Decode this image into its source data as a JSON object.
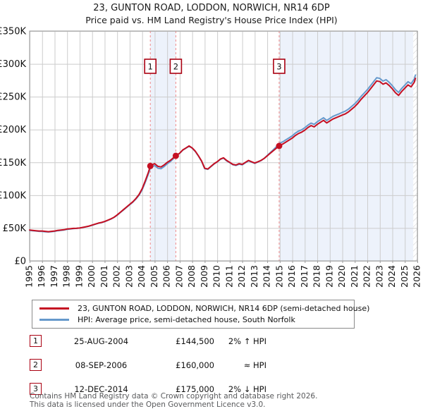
{
  "title": {
    "line1": "23, GUNTON ROAD, LODDON, NORWICH, NR14 6DP",
    "line2": "Price paid vs. HM Land Registry's House Price Index (HPI)"
  },
  "colors": {
    "price_line": "#c50f22",
    "hpi_line": "#6699cc",
    "sale_dashed": "#f08a8a",
    "marker_box_border": "#aa0011",
    "band_fill": "#edf2fb",
    "gridline": "#cccccc",
    "plot_border": "#9a9a9a",
    "hatch": "#c8c8c8"
  },
  "chart_data": {
    "type": "line",
    "title": "Price paid vs. HM Land Registry's House Price Index (HPI)",
    "units": "GBP thousands",
    "xlim": [
      1995,
      2026
    ],
    "ylim": [
      0,
      350
    ],
    "x_ticks": [
      1995,
      1996,
      1997,
      1998,
      1999,
      2000,
      2001,
      2002,
      2003,
      2004,
      2005,
      2006,
      2007,
      2008,
      2009,
      2010,
      2011,
      2012,
      2013,
      2014,
      2015,
      2016,
      2017,
      2018,
      2019,
      2020,
      2021,
      2022,
      2023,
      2024,
      2025,
      2026
    ],
    "y_ticks": [
      {
        "v": 0,
        "label": "£0"
      },
      {
        "v": 50,
        "label": "£50K"
      },
      {
        "v": 100,
        "label": "£100K"
      },
      {
        "v": 150,
        "label": "£150K"
      },
      {
        "v": 200,
        "label": "£200K"
      },
      {
        "v": 250,
        "label": "£250K"
      },
      {
        "v": 300,
        "label": "£300K"
      },
      {
        "v": 350,
        "label": "£350K"
      }
    ],
    "x": [
      1995,
      1995.25,
      1995.5,
      1995.75,
      1996,
      1996.25,
      1996.5,
      1996.75,
      1997,
      1997.25,
      1997.5,
      1997.75,
      1998,
      1998.25,
      1998.5,
      1998.75,
      1999,
      1999.25,
      1999.5,
      1999.75,
      2000,
      2000.25,
      2000.5,
      2000.75,
      2001,
      2001.25,
      2001.5,
      2001.75,
      2002,
      2002.25,
      2002.5,
      2002.75,
      2003,
      2003.25,
      2003.5,
      2003.75,
      2004,
      2004.25,
      2004.5,
      2004.65,
      2004.75,
      2005,
      2005.25,
      2005.5,
      2005.75,
      2006,
      2006.25,
      2006.5,
      2006.69,
      2007,
      2007.25,
      2007.5,
      2007.75,
      2008,
      2008.25,
      2008.5,
      2008.75,
      2009,
      2009.25,
      2009.5,
      2009.75,
      2010,
      2010.25,
      2010.5,
      2010.75,
      2011,
      2011.25,
      2011.5,
      2011.75,
      2012,
      2012.25,
      2012.5,
      2012.75,
      2013,
      2013.25,
      2013.5,
      2013.75,
      2014,
      2014.25,
      2014.5,
      2014.75,
      2014.95,
      2015,
      2015.25,
      2015.5,
      2015.75,
      2016,
      2016.25,
      2016.5,
      2016.75,
      2017,
      2017.25,
      2017.5,
      2017.75,
      2018,
      2018.25,
      2018.5,
      2018.75,
      2019,
      2019.25,
      2019.5,
      2019.75,
      2020,
      2020.25,
      2020.5,
      2020.75,
      2021,
      2021.25,
      2021.5,
      2021.75,
      2022,
      2022.25,
      2022.5,
      2022.75,
      2023,
      2023.25,
      2023.5,
      2023.75,
      2024,
      2024.25,
      2024.5,
      2024.75,
      2025,
      2025.25,
      2025.5,
      2025.75,
      2025.85
    ],
    "series": [
      {
        "name": "price-paid",
        "label": "23, GUNTON ROAD, LODDON, NORWICH, NR14 6DP (semi-detached house)",
        "color": "#c50f22",
        "values": [
          47,
          46.5,
          46,
          45.5,
          45.5,
          45,
          44.5,
          45,
          45.5,
          46.5,
          47,
          47.5,
          48.5,
          49,
          49.5,
          49.6,
          50,
          51,
          52,
          53,
          54.5,
          56,
          57.5,
          58.5,
          60,
          62,
          64,
          66.5,
          70,
          74,
          78,
          82,
          86,
          90,
          95,
          101,
          110,
          122,
          135,
          144.5,
          146,
          148,
          144,
          143,
          146,
          150,
          153,
          157,
          160,
          164,
          169,
          172,
          175,
          172,
          167,
          160,
          152,
          141,
          140,
          144,
          148,
          151,
          155,
          157,
          153,
          150,
          147,
          146,
          148,
          147,
          150,
          153,
          151,
          149,
          151,
          153,
          156,
          160,
          164,
          168,
          172,
          175,
          176,
          178,
          181,
          184,
          187,
          191,
          194,
          196,
          199,
          203,
          206,
          204,
          208,
          211,
          214,
          210,
          213,
          216,
          218,
          220,
          222,
          224,
          227,
          231,
          235,
          240,
          246,
          251,
          256,
          262,
          268,
          274,
          273,
          269,
          271,
          267,
          262,
          256,
          252,
          258,
          263,
          268,
          265,
          272,
          278
        ]
      },
      {
        "name": "hpi",
        "label": "HPI: Average price, semi-detached house, South Norfolk",
        "color": "#6699cc",
        "values": [
          46.5,
          46,
          45.5,
          45,
          44.8,
          44.3,
          44,
          44.5,
          45,
          46,
          46.5,
          47,
          48,
          48.6,
          49.2,
          49.5,
          50,
          50.8,
          51.8,
          52.8,
          54.2,
          55.7,
          57.2,
          58.2,
          59.7,
          61.7,
          63.7,
          66.2,
          69.6,
          73.5,
          77.5,
          81.5,
          85.4,
          89.4,
          94.2,
          100,
          108.3,
          119.8,
          132.3,
          141.7,
          143.2,
          145.1,
          141.2,
          140.3,
          143.5,
          147.8,
          151.2,
          155.8,
          159.8,
          163.8,
          168.7,
          171.7,
          174.6,
          171.6,
          166.5,
          159.5,
          151.4,
          140.3,
          139.4,
          143.5,
          147.5,
          150.6,
          154.6,
          156.5,
          152.4,
          149.4,
          146.3,
          145.3,
          147.2,
          146.2,
          149.3,
          152.4,
          150.4,
          148.5,
          150.6,
          152.7,
          156,
          160.5,
          165,
          169.5,
          174.3,
          178.5,
          179.3,
          181.3,
          184.4,
          187.4,
          190.5,
          194.5,
          197.6,
          199.6,
          202.7,
          206.7,
          209.8,
          207.8,
          211.8,
          214.9,
          217.9,
          213.9,
          216.9,
          220,
          222,
          224,
          226.1,
          228.1,
          231.2,
          235.2,
          239.3,
          244.4,
          250.5,
          255.5,
          260.6,
          266.7,
          272.8,
          278.9,
          277.9,
          273.8,
          275.9,
          271.8,
          266.7,
          260.6,
          256.5,
          262.6,
          267.7,
          272.8,
          269.8,
          276.9,
          283
        ]
      }
    ],
    "sales": [
      {
        "label": "1",
        "x": 2004.65,
        "value": 144.5
      },
      {
        "label": "2",
        "x": 2006.69,
        "value": 160
      },
      {
        "label": "3",
        "x": 2014.95,
        "value": 175
      }
    ],
    "bands": [
      [
        2004.65,
        2006.69
      ],
      [
        2014.95,
        2026
      ]
    ],
    "hatch_from": 2025.67,
    "legend_position": "below"
  },
  "legend": {
    "entries": [
      {
        "label": "23, GUNTON ROAD, LODDON, NORWICH, NR14 6DP (semi-detached house)",
        "color": "#c50f22"
      },
      {
        "label": "HPI: Average price, semi-detached house, South Norfolk",
        "color": "#6699cc"
      }
    ]
  },
  "table": {
    "rows": [
      {
        "num": "1",
        "date": "25-AUG-2004",
        "price": "£144,500",
        "delta": "2% ↑ HPI"
      },
      {
        "num": "2",
        "date": "08-SEP-2006",
        "price": "£160,000",
        "delta": "≈ HPI"
      },
      {
        "num": "3",
        "date": "12-DEC-2014",
        "price": "£175,000",
        "delta": "2% ↓ HPI"
      }
    ]
  },
  "footer": {
    "line1": "Contains HM Land Registry data © Crown copyright and database right 2026.",
    "line2": "This data is licensed under the Open Government Licence v3.0."
  }
}
